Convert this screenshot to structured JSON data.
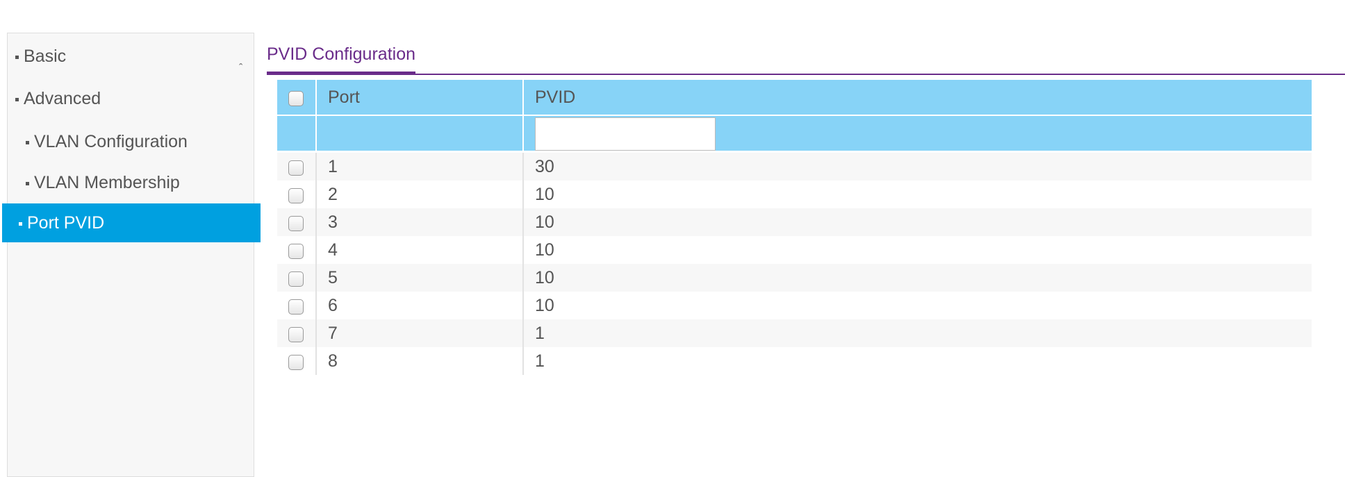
{
  "nav": {
    "items": [
      {
        "label": "Basic"
      },
      {
        "label": "Advanced"
      },
      {
        "label": "VLAN Configuration"
      },
      {
        "label": "VLAN Membership"
      },
      {
        "label": "Port PVID"
      }
    ]
  },
  "tab": {
    "title": "PVID Configuration"
  },
  "table": {
    "columns": [
      "Port",
      "PVID"
    ],
    "rows": [
      [
        1,
        30
      ],
      [
        2,
        10
      ],
      [
        3,
        10
      ],
      [
        4,
        10
      ],
      [
        5,
        10
      ],
      [
        6,
        10
      ],
      [
        7,
        1
      ],
      [
        8,
        1
      ]
    ]
  }
}
